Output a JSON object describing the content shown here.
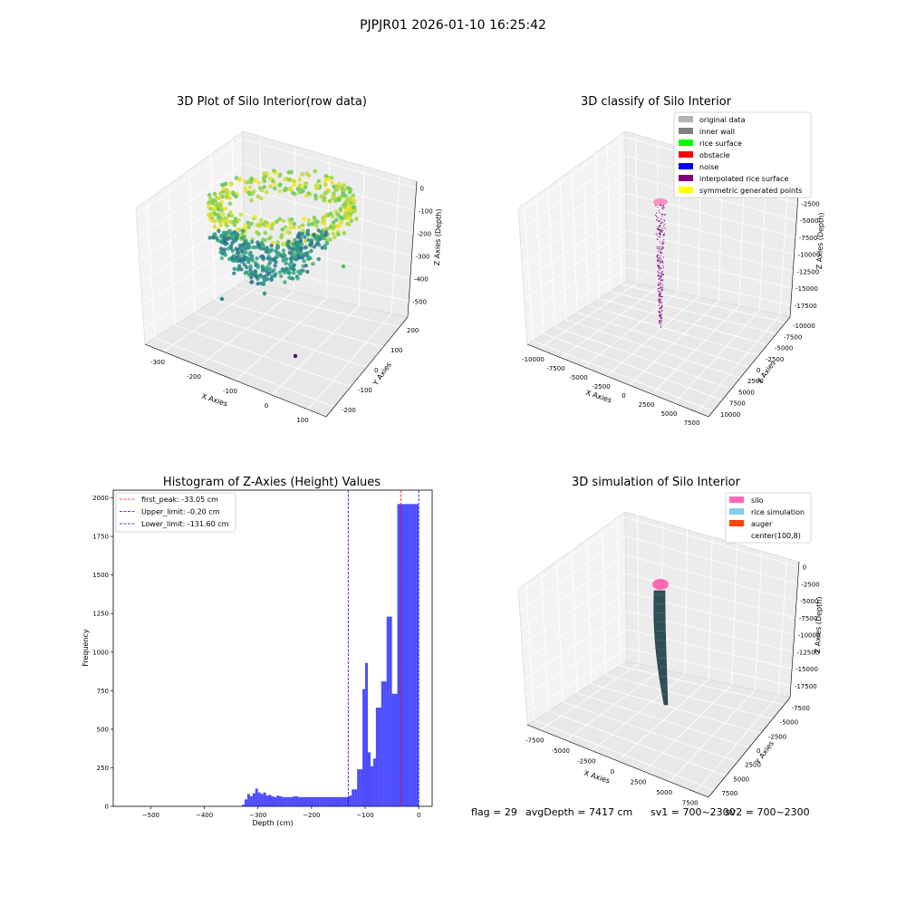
{
  "figure": {
    "suptitle": "PJPJR01 2026-01-10 16:25:42",
    "status": {
      "flag": "flag = 29",
      "avg_depth": "avgDepth = 7417 cm",
      "sv1": "sv1 = 700~2300",
      "sv2": "sv2 = 700~2300"
    }
  },
  "chart_data": [
    {
      "type": "scatter3d",
      "title": "3D Plot of Silo Interior(row data)",
      "xlabel": "X Axies",
      "ylabel": "Y Axies",
      "zlabel": "Z Axies (Depth)",
      "xticks": [
        "-300",
        "-200",
        "-100",
        "0",
        "100"
      ],
      "yticks": [
        "-200",
        "-100",
        "0",
        "100",
        "200"
      ],
      "zticks": [
        "0",
        "-100",
        "-200",
        "-300",
        "-400",
        "-500"
      ],
      "colormap": "viridis",
      "grid": true
    },
    {
      "type": "scatter3d",
      "title": "3D classify of Silo Interior",
      "xlabel": "X Axies",
      "ylabel": "Y Axies",
      "zlabel": "Z Axies (Depth)",
      "xticks": [
        "-10000",
        "-7500",
        "-5000",
        "-2500",
        "0",
        "2500",
        "5000",
        "7500"
      ],
      "yticks": [
        "10000",
        "7500",
        "5000",
        "2500",
        "0",
        "-2500",
        "-5000",
        "-7500",
        "-10000"
      ],
      "zticks": [
        "0",
        "-2500",
        "-5000",
        "-7500",
        "-10000",
        "-12500",
        "-15000",
        "-17500"
      ],
      "legend_position": "top-right",
      "legend": [
        {
          "label": "original data",
          "color": "#b3b3b3"
        },
        {
          "label": "inner wall",
          "color": "#808080"
        },
        {
          "label": "rice surface",
          "color": "#00ff00"
        },
        {
          "label": "obstacle",
          "color": "#ff0000"
        },
        {
          "label": "noise",
          "color": "#0000ff"
        },
        {
          "label": "interpolated rice surface",
          "color": "#800080"
        },
        {
          "label": "symmetric generated points",
          "color": "#ffff00"
        }
      ],
      "grid": true
    },
    {
      "type": "histogram",
      "title": "Histogram of Z-Axies (Height) Values",
      "xlabel": "Depth (cm)",
      "ylabel": "Frequency",
      "xlim": [
        -570,
        25
      ],
      "ylim": [
        0,
        2050
      ],
      "xticks": [
        -500,
        -400,
        -300,
        -200,
        -100,
        0
      ],
      "yticks": [
        0,
        250,
        500,
        750,
        1000,
        1250,
        1500,
        1750,
        2000
      ],
      "bin_width": 5,
      "bars": [
        {
          "x0": -330,
          "value": 10
        },
        {
          "x0": -325,
          "value": 45
        },
        {
          "x0": -320,
          "value": 80
        },
        {
          "x0": -315,
          "value": 65
        },
        {
          "x0": -310,
          "value": 85
        },
        {
          "x0": -305,
          "value": 115
        },
        {
          "x0": -300,
          "value": 90
        },
        {
          "x0": -295,
          "value": 80
        },
        {
          "x0": -290,
          "value": 90
        },
        {
          "x0": -285,
          "value": 70
        },
        {
          "x0": -280,
          "value": 75
        },
        {
          "x0": -275,
          "value": 65
        },
        {
          "x0": -270,
          "value": 60
        },
        {
          "x0": -265,
          "value": 70
        },
        {
          "x0": -260,
          "value": 65
        },
        {
          "x0": -255,
          "value": 60
        },
        {
          "x0": -250,
          "value": 60
        },
        {
          "x0": -245,
          "value": 60
        },
        {
          "x0": -240,
          "value": 60
        },
        {
          "x0": -235,
          "value": 65
        },
        {
          "x0": -230,
          "value": 65
        },
        {
          "x0": -225,
          "value": 60
        },
        {
          "x0": -220,
          "value": 60
        },
        {
          "x0": -215,
          "value": 60
        },
        {
          "x0": -210,
          "value": 60
        },
        {
          "x0": -205,
          "value": 60
        },
        {
          "x0": -200,
          "value": 60
        },
        {
          "x0": -195,
          "value": 60
        },
        {
          "x0": -190,
          "value": 60
        },
        {
          "x0": -185,
          "value": 60
        },
        {
          "x0": -180,
          "value": 60
        },
        {
          "x0": -175,
          "value": 60
        },
        {
          "x0": -170,
          "value": 60
        },
        {
          "x0": -165,
          "value": 60
        },
        {
          "x0": -160,
          "value": 60
        },
        {
          "x0": -155,
          "value": 60
        },
        {
          "x0": -150,
          "value": 60
        },
        {
          "x0": -145,
          "value": 60
        },
        {
          "x0": -140,
          "value": 60
        },
        {
          "x0": -135,
          "value": 60
        },
        {
          "x0": -130,
          "value": 70
        },
        {
          "x0": -125,
          "value": 110
        },
        {
          "x0": -120,
          "value": 110
        },
        {
          "x0": -115,
          "value": 240
        },
        {
          "x0": -110,
          "value": 240
        },
        {
          "x0": -105,
          "value": 760
        },
        {
          "x0": -100,
          "value": 930
        },
        {
          "x0": -95,
          "value": 350
        },
        {
          "x0": -90,
          "value": 260
        },
        {
          "x0": -85,
          "value": 310
        },
        {
          "x0": -80,
          "value": 640
        },
        {
          "x0": -75,
          "value": 640
        },
        {
          "x0": -70,
          "value": 810
        },
        {
          "x0": -65,
          "value": 810
        },
        {
          "x0": -60,
          "value": 1230
        },
        {
          "x0": -55,
          "value": 1230
        },
        {
          "x0": -50,
          "value": 730
        },
        {
          "x0": -45,
          "value": 730
        },
        {
          "x0": -40,
          "value": 1960
        },
        {
          "x0": -35,
          "value": 1960
        },
        {
          "x0": -30,
          "value": 1960
        },
        {
          "x0": -25,
          "value": 1960
        },
        {
          "x0": -20,
          "value": 1960
        },
        {
          "x0": -15,
          "value": 1960
        },
        {
          "x0": -10,
          "value": 1960
        },
        {
          "x0": -5,
          "value": 1960
        }
      ],
      "bar_color": "#0000ff",
      "vlines": [
        {
          "label": "first_peak: -33.05 cm",
          "x": -33.05,
          "color": "#ff0000"
        },
        {
          "label": "Upper_limit: -0.20 cm",
          "x": -0.2,
          "color": "#0000ff"
        },
        {
          "label": "Lower_limit: -131.60 cm",
          "x": -131.6,
          "color": "#0000ff"
        }
      ],
      "legend_position": "top-left"
    },
    {
      "type": "surface3d",
      "title": "3D simulation of Silo Interior",
      "xlabel": "X Axies",
      "ylabel": "Y Axies",
      "zlabel": "Z Axies (Depth)",
      "xticks": [
        "-7500",
        "-5000",
        "-2500",
        "0",
        "2500",
        "5000",
        "7500"
      ],
      "yticks": [
        "7500",
        "5000",
        "2500",
        "0",
        "-2500",
        "-5000",
        "-7500"
      ],
      "zticks": [
        "0",
        "-2500",
        "-5000",
        "-7500",
        "-10000",
        "-12500",
        "-15000",
        "-17500"
      ],
      "legend_position": "top-right",
      "legend": [
        {
          "label": "silo",
          "color": "#ff69b4"
        },
        {
          "label": "rice simulation",
          "color": "#87ceeb"
        },
        {
          "label": "auger",
          "color": "#ff4500"
        },
        {
          "label": "center(100,8)",
          "color": "#ffffff"
        }
      ],
      "grid": true
    }
  ]
}
